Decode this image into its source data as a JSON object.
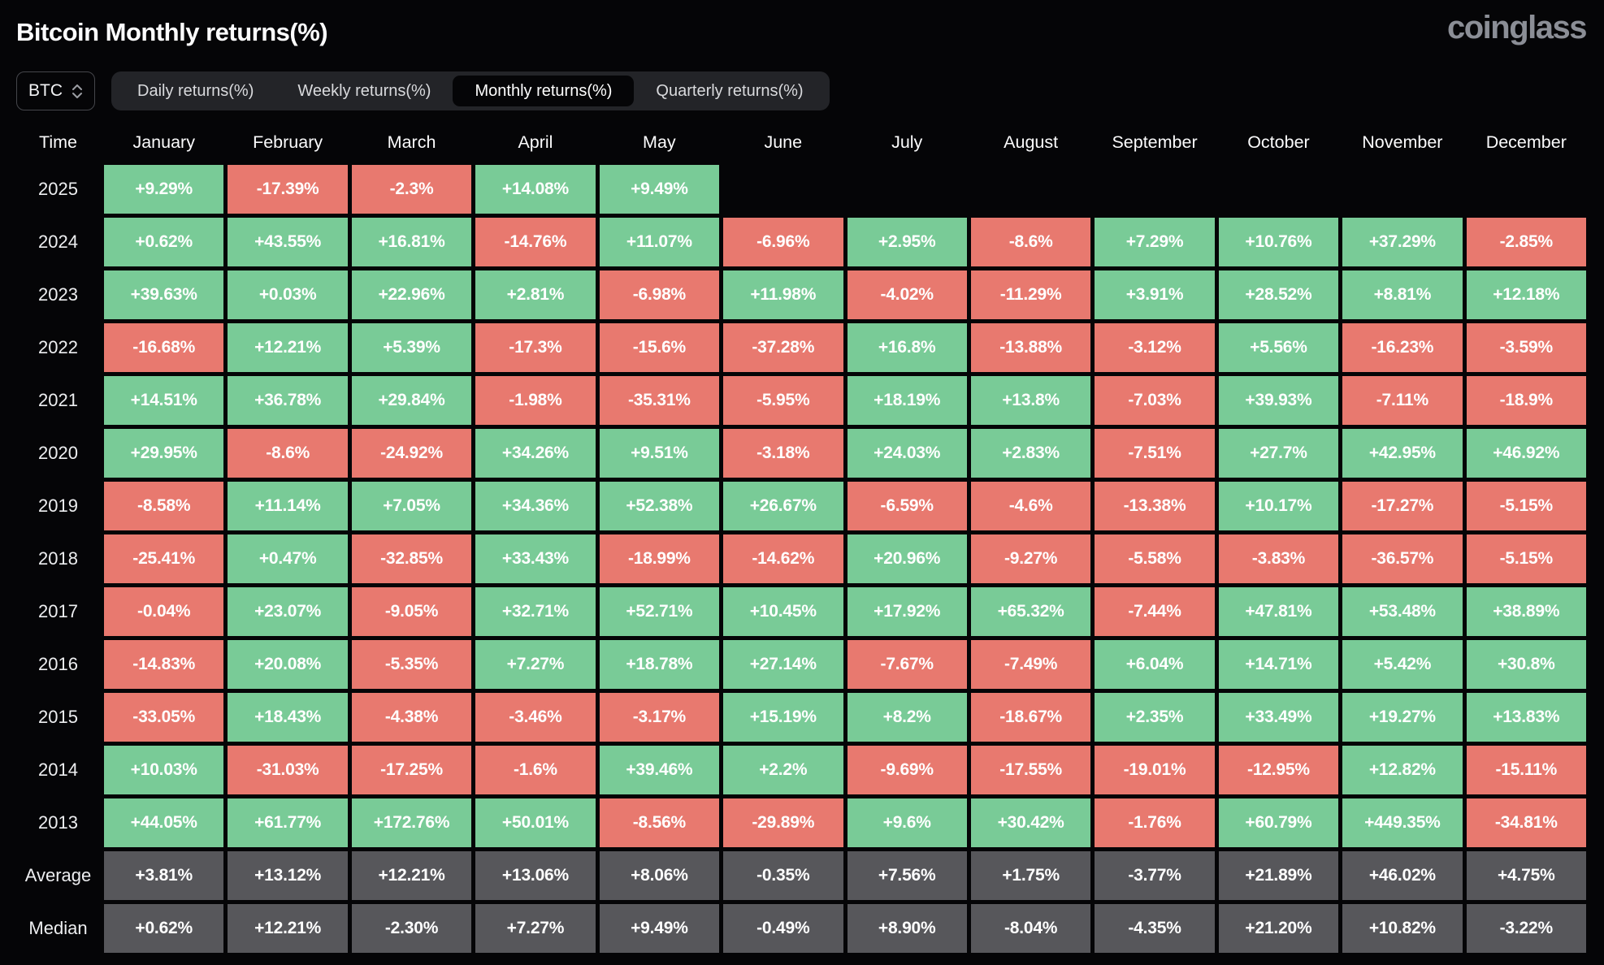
{
  "page": {
    "title": "Bitcoin Monthly returns(%)",
    "logo": "coinglass"
  },
  "controls": {
    "symbol_select": {
      "value": "BTC",
      "icon": "updown-chevron-icon"
    },
    "tabs": [
      {
        "label": "Daily returns(%)",
        "active": false
      },
      {
        "label": "Weekly returns(%)",
        "active": false
      },
      {
        "label": "Monthly returns(%)",
        "active": true
      },
      {
        "label": "Quarterly returns(%)",
        "active": false
      }
    ]
  },
  "colors": {
    "positive": "#79cb97",
    "negative": "#e8796f",
    "neutral": "#57575b",
    "bg": "#050507"
  },
  "table": {
    "columns": [
      "Time",
      "January",
      "February",
      "March",
      "April",
      "May",
      "June",
      "July",
      "August",
      "September",
      "October",
      "November",
      "December"
    ],
    "rows": [
      {
        "label": "2025",
        "type": "year",
        "cells": [
          {
            "v": "+9.29%",
            "s": "pos"
          },
          {
            "v": "-17.39%",
            "s": "neg"
          },
          {
            "v": "-2.3%",
            "s": "neg"
          },
          {
            "v": "+14.08%",
            "s": "pos"
          },
          {
            "v": "+9.49%",
            "s": "pos"
          },
          {
            "v": "",
            "s": "empty"
          },
          {
            "v": "",
            "s": "empty"
          },
          {
            "v": "",
            "s": "empty"
          },
          {
            "v": "",
            "s": "empty"
          },
          {
            "v": "",
            "s": "empty"
          },
          {
            "v": "",
            "s": "empty"
          },
          {
            "v": "",
            "s": "empty"
          }
        ]
      },
      {
        "label": "2024",
        "type": "year",
        "cells": [
          {
            "v": "+0.62%",
            "s": "pos"
          },
          {
            "v": "+43.55%",
            "s": "pos"
          },
          {
            "v": "+16.81%",
            "s": "pos"
          },
          {
            "v": "-14.76%",
            "s": "neg"
          },
          {
            "v": "+11.07%",
            "s": "pos"
          },
          {
            "v": "-6.96%",
            "s": "neg"
          },
          {
            "v": "+2.95%",
            "s": "pos"
          },
          {
            "v": "-8.6%",
            "s": "neg"
          },
          {
            "v": "+7.29%",
            "s": "pos"
          },
          {
            "v": "+10.76%",
            "s": "pos"
          },
          {
            "v": "+37.29%",
            "s": "pos"
          },
          {
            "v": "-2.85%",
            "s": "neg"
          }
        ]
      },
      {
        "label": "2023",
        "type": "year",
        "cells": [
          {
            "v": "+39.63%",
            "s": "pos"
          },
          {
            "v": "+0.03%",
            "s": "pos"
          },
          {
            "v": "+22.96%",
            "s": "pos"
          },
          {
            "v": "+2.81%",
            "s": "pos"
          },
          {
            "v": "-6.98%",
            "s": "neg"
          },
          {
            "v": "+11.98%",
            "s": "pos"
          },
          {
            "v": "-4.02%",
            "s": "neg"
          },
          {
            "v": "-11.29%",
            "s": "neg"
          },
          {
            "v": "+3.91%",
            "s": "pos"
          },
          {
            "v": "+28.52%",
            "s": "pos"
          },
          {
            "v": "+8.81%",
            "s": "pos"
          },
          {
            "v": "+12.18%",
            "s": "pos"
          }
        ]
      },
      {
        "label": "2022",
        "type": "year",
        "cells": [
          {
            "v": "-16.68%",
            "s": "neg"
          },
          {
            "v": "+12.21%",
            "s": "pos"
          },
          {
            "v": "+5.39%",
            "s": "pos"
          },
          {
            "v": "-17.3%",
            "s": "neg"
          },
          {
            "v": "-15.6%",
            "s": "neg"
          },
          {
            "v": "-37.28%",
            "s": "neg"
          },
          {
            "v": "+16.8%",
            "s": "pos"
          },
          {
            "v": "-13.88%",
            "s": "neg"
          },
          {
            "v": "-3.12%",
            "s": "neg"
          },
          {
            "v": "+5.56%",
            "s": "pos"
          },
          {
            "v": "-16.23%",
            "s": "neg"
          },
          {
            "v": "-3.59%",
            "s": "neg"
          }
        ]
      },
      {
        "label": "2021",
        "type": "year",
        "cells": [
          {
            "v": "+14.51%",
            "s": "pos"
          },
          {
            "v": "+36.78%",
            "s": "pos"
          },
          {
            "v": "+29.84%",
            "s": "pos"
          },
          {
            "v": "-1.98%",
            "s": "neg"
          },
          {
            "v": "-35.31%",
            "s": "neg"
          },
          {
            "v": "-5.95%",
            "s": "neg"
          },
          {
            "v": "+18.19%",
            "s": "pos"
          },
          {
            "v": "+13.8%",
            "s": "pos"
          },
          {
            "v": "-7.03%",
            "s": "neg"
          },
          {
            "v": "+39.93%",
            "s": "pos"
          },
          {
            "v": "-7.11%",
            "s": "neg"
          },
          {
            "v": "-18.9%",
            "s": "neg"
          }
        ]
      },
      {
        "label": "2020",
        "type": "year",
        "cells": [
          {
            "v": "+29.95%",
            "s": "pos"
          },
          {
            "v": "-8.6%",
            "s": "neg"
          },
          {
            "v": "-24.92%",
            "s": "neg"
          },
          {
            "v": "+34.26%",
            "s": "pos"
          },
          {
            "v": "+9.51%",
            "s": "pos"
          },
          {
            "v": "-3.18%",
            "s": "neg"
          },
          {
            "v": "+24.03%",
            "s": "pos"
          },
          {
            "v": "+2.83%",
            "s": "pos"
          },
          {
            "v": "-7.51%",
            "s": "neg"
          },
          {
            "v": "+27.7%",
            "s": "pos"
          },
          {
            "v": "+42.95%",
            "s": "pos"
          },
          {
            "v": "+46.92%",
            "s": "pos"
          }
        ]
      },
      {
        "label": "2019",
        "type": "year",
        "cells": [
          {
            "v": "-8.58%",
            "s": "neg"
          },
          {
            "v": "+11.14%",
            "s": "pos"
          },
          {
            "v": "+7.05%",
            "s": "pos"
          },
          {
            "v": "+34.36%",
            "s": "pos"
          },
          {
            "v": "+52.38%",
            "s": "pos"
          },
          {
            "v": "+26.67%",
            "s": "pos"
          },
          {
            "v": "-6.59%",
            "s": "neg"
          },
          {
            "v": "-4.6%",
            "s": "neg"
          },
          {
            "v": "-13.38%",
            "s": "neg"
          },
          {
            "v": "+10.17%",
            "s": "pos"
          },
          {
            "v": "-17.27%",
            "s": "neg"
          },
          {
            "v": "-5.15%",
            "s": "neg"
          }
        ]
      },
      {
        "label": "2018",
        "type": "year",
        "cells": [
          {
            "v": "-25.41%",
            "s": "neg"
          },
          {
            "v": "+0.47%",
            "s": "pos"
          },
          {
            "v": "-32.85%",
            "s": "neg"
          },
          {
            "v": "+33.43%",
            "s": "pos"
          },
          {
            "v": "-18.99%",
            "s": "neg"
          },
          {
            "v": "-14.62%",
            "s": "neg"
          },
          {
            "v": "+20.96%",
            "s": "pos"
          },
          {
            "v": "-9.27%",
            "s": "neg"
          },
          {
            "v": "-5.58%",
            "s": "neg"
          },
          {
            "v": "-3.83%",
            "s": "neg"
          },
          {
            "v": "-36.57%",
            "s": "neg"
          },
          {
            "v": "-5.15%",
            "s": "neg"
          }
        ]
      },
      {
        "label": "2017",
        "type": "year",
        "cells": [
          {
            "v": "-0.04%",
            "s": "neg"
          },
          {
            "v": "+23.07%",
            "s": "pos"
          },
          {
            "v": "-9.05%",
            "s": "neg"
          },
          {
            "v": "+32.71%",
            "s": "pos"
          },
          {
            "v": "+52.71%",
            "s": "pos"
          },
          {
            "v": "+10.45%",
            "s": "pos"
          },
          {
            "v": "+17.92%",
            "s": "pos"
          },
          {
            "v": "+65.32%",
            "s": "pos"
          },
          {
            "v": "-7.44%",
            "s": "neg"
          },
          {
            "v": "+47.81%",
            "s": "pos"
          },
          {
            "v": "+53.48%",
            "s": "pos"
          },
          {
            "v": "+38.89%",
            "s": "pos"
          }
        ]
      },
      {
        "label": "2016",
        "type": "year",
        "cells": [
          {
            "v": "-14.83%",
            "s": "neg"
          },
          {
            "v": "+20.08%",
            "s": "pos"
          },
          {
            "v": "-5.35%",
            "s": "neg"
          },
          {
            "v": "+7.27%",
            "s": "pos"
          },
          {
            "v": "+18.78%",
            "s": "pos"
          },
          {
            "v": "+27.14%",
            "s": "pos"
          },
          {
            "v": "-7.67%",
            "s": "neg"
          },
          {
            "v": "-7.49%",
            "s": "neg"
          },
          {
            "v": "+6.04%",
            "s": "pos"
          },
          {
            "v": "+14.71%",
            "s": "pos"
          },
          {
            "v": "+5.42%",
            "s": "pos"
          },
          {
            "v": "+30.8%",
            "s": "pos"
          }
        ]
      },
      {
        "label": "2015",
        "type": "year",
        "cells": [
          {
            "v": "-33.05%",
            "s": "neg"
          },
          {
            "v": "+18.43%",
            "s": "pos"
          },
          {
            "v": "-4.38%",
            "s": "neg"
          },
          {
            "v": "-3.46%",
            "s": "neg"
          },
          {
            "v": "-3.17%",
            "s": "neg"
          },
          {
            "v": "+15.19%",
            "s": "pos"
          },
          {
            "v": "+8.2%",
            "s": "pos"
          },
          {
            "v": "-18.67%",
            "s": "neg"
          },
          {
            "v": "+2.35%",
            "s": "pos"
          },
          {
            "v": "+33.49%",
            "s": "pos"
          },
          {
            "v": "+19.27%",
            "s": "pos"
          },
          {
            "v": "+13.83%",
            "s": "pos"
          }
        ]
      },
      {
        "label": "2014",
        "type": "year",
        "cells": [
          {
            "v": "+10.03%",
            "s": "pos"
          },
          {
            "v": "-31.03%",
            "s": "neg"
          },
          {
            "v": "-17.25%",
            "s": "neg"
          },
          {
            "v": "-1.6%",
            "s": "neg"
          },
          {
            "v": "+39.46%",
            "s": "pos"
          },
          {
            "v": "+2.2%",
            "s": "pos"
          },
          {
            "v": "-9.69%",
            "s": "neg"
          },
          {
            "v": "-17.55%",
            "s": "neg"
          },
          {
            "v": "-19.01%",
            "s": "neg"
          },
          {
            "v": "-12.95%",
            "s": "neg"
          },
          {
            "v": "+12.82%",
            "s": "pos"
          },
          {
            "v": "-15.11%",
            "s": "neg"
          }
        ]
      },
      {
        "label": "2013",
        "type": "year",
        "cells": [
          {
            "v": "+44.05%",
            "s": "pos"
          },
          {
            "v": "+61.77%",
            "s": "pos"
          },
          {
            "v": "+172.76%",
            "s": "pos"
          },
          {
            "v": "+50.01%",
            "s": "pos"
          },
          {
            "v": "-8.56%",
            "s": "neg"
          },
          {
            "v": "-29.89%",
            "s": "neg"
          },
          {
            "v": "+9.6%",
            "s": "pos"
          },
          {
            "v": "+30.42%",
            "s": "pos"
          },
          {
            "v": "-1.76%",
            "s": "neg"
          },
          {
            "v": "+60.79%",
            "s": "pos"
          },
          {
            "v": "+449.35%",
            "s": "pos"
          },
          {
            "v": "-34.81%",
            "s": "neg"
          }
        ]
      },
      {
        "label": "Average",
        "type": "summary",
        "cells": [
          {
            "v": "+3.81%",
            "s": "sum"
          },
          {
            "v": "+13.12%",
            "s": "sum"
          },
          {
            "v": "+12.21%",
            "s": "sum"
          },
          {
            "v": "+13.06%",
            "s": "sum"
          },
          {
            "v": "+8.06%",
            "s": "sum"
          },
          {
            "v": "-0.35%",
            "s": "sum"
          },
          {
            "v": "+7.56%",
            "s": "sum"
          },
          {
            "v": "+1.75%",
            "s": "sum"
          },
          {
            "v": "-3.77%",
            "s": "sum"
          },
          {
            "v": "+21.89%",
            "s": "sum"
          },
          {
            "v": "+46.02%",
            "s": "sum"
          },
          {
            "v": "+4.75%",
            "s": "sum"
          }
        ]
      },
      {
        "label": "Median",
        "type": "summary",
        "cells": [
          {
            "v": "+0.62%",
            "s": "sum"
          },
          {
            "v": "+12.21%",
            "s": "sum"
          },
          {
            "v": "-2.30%",
            "s": "sum"
          },
          {
            "v": "+7.27%",
            "s": "sum"
          },
          {
            "v": "+9.49%",
            "s": "sum"
          },
          {
            "v": "-0.49%",
            "s": "sum"
          },
          {
            "v": "+8.90%",
            "s": "sum"
          },
          {
            "v": "-8.04%",
            "s": "sum"
          },
          {
            "v": "-4.35%",
            "s": "sum"
          },
          {
            "v": "+21.20%",
            "s": "sum"
          },
          {
            "v": "+10.82%",
            "s": "sum"
          },
          {
            "v": "-3.22%",
            "s": "sum"
          }
        ]
      }
    ]
  }
}
